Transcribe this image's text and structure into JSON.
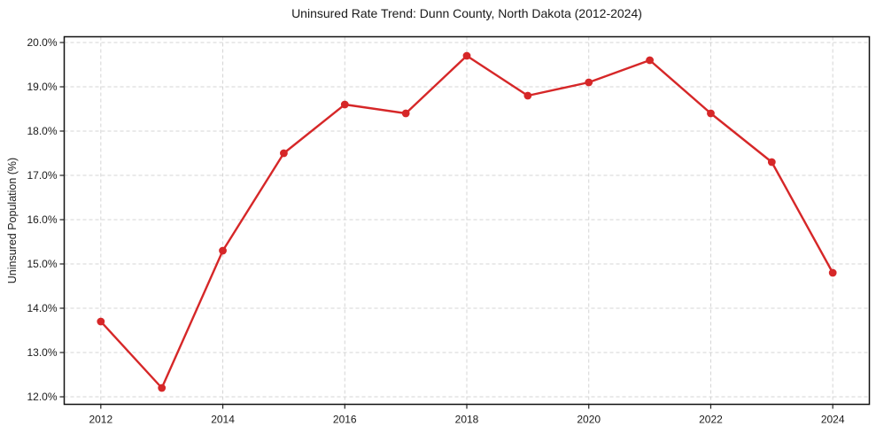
{
  "chart_data": {
    "type": "line",
    "title": "Uninsured Rate Trend: Dunn County, North Dakota (2012-2024)",
    "xlabel": "",
    "ylabel": "Uninsured Population (%)",
    "x": [
      2012,
      2013,
      2014,
      2015,
      2016,
      2017,
      2018,
      2019,
      2020,
      2021,
      2022,
      2023,
      2024
    ],
    "series": [
      {
        "name": "Uninsured Rate",
        "values": [
          13.7,
          12.2,
          15.3,
          17.5,
          18.6,
          18.4,
          19.7,
          18.8,
          19.1,
          19.6,
          18.4,
          17.3,
          14.8
        ]
      }
    ],
    "xticks": [
      2012,
      2014,
      2016,
      2018,
      2020,
      2022,
      2024
    ],
    "yticks": [
      12,
      13,
      14,
      15,
      16,
      17,
      18,
      19,
      20
    ],
    "ytick_suffix": "%",
    "ytick_decimals": 1,
    "ylim": [
      12.0,
      20.0
    ],
    "xlim": [
      2011.4,
      2024.6
    ],
    "grid": true,
    "legend_position": "none",
    "line_color": "#d62728",
    "marker": "circle"
  }
}
